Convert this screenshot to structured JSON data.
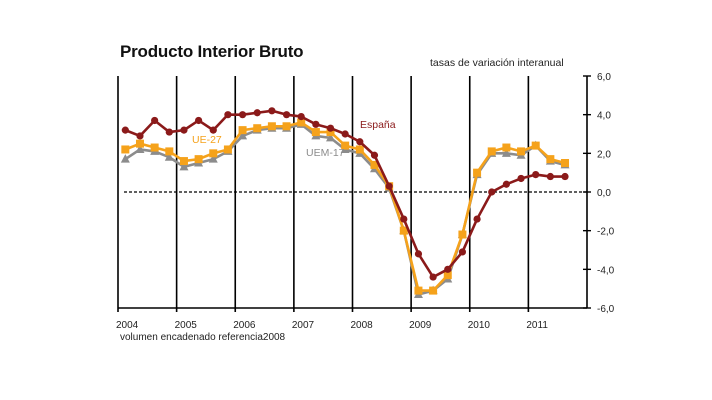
{
  "title": "Producto Interior Bruto",
  "subtitle": "tasas de variación interanual",
  "footnote": "volumen encadenado referencia2008",
  "chart_data": {
    "type": "line",
    "title": "Producto Interior Bruto",
    "subtitle": "tasas de variación interanual",
    "xlabel": "",
    "ylabel": "",
    "note": "volumen encadenado referencia2008",
    "x_tick_labels": [
      "2004",
      "2005",
      "2006",
      "2007",
      "2008",
      "2009",
      "2010",
      "2011"
    ],
    "y_tick_labels": [
      "6,0",
      "4,0",
      "2,0",
      "0,0",
      "-2,0",
      "-4,0",
      "-6,0"
    ],
    "ylim": [
      -6,
      6
    ],
    "grid": "vertical year lines, dashed zero line",
    "frequency": "quarterly",
    "x": [
      "2004Q1",
      "2004Q2",
      "2004Q3",
      "2004Q4",
      "2005Q1",
      "2005Q2",
      "2005Q3",
      "2005Q4",
      "2006Q1",
      "2006Q2",
      "2006Q3",
      "2006Q4",
      "2007Q1",
      "2007Q2",
      "2007Q3",
      "2007Q4",
      "2008Q1",
      "2008Q2",
      "2008Q3",
      "2008Q4",
      "2009Q1",
      "2009Q2",
      "2009Q3",
      "2009Q4",
      "2010Q1",
      "2010Q2",
      "2010Q3",
      "2010Q4",
      "2011Q1",
      "2011Q2",
      "2011Q3"
    ],
    "series": [
      {
        "name": "España",
        "color": "#8b1a1a",
        "marker": "circle",
        "values": [
          3.2,
          2.9,
          3.7,
          3.1,
          3.2,
          3.7,
          3.2,
          4.0,
          4.0,
          4.1,
          4.2,
          4.0,
          3.9,
          3.5,
          3.3,
          3.0,
          2.6,
          1.9,
          0.3,
          -1.4,
          -3.2,
          -4.4,
          -4.0,
          -3.1,
          -1.4,
          0.0,
          0.4,
          0.7,
          0.9,
          0.8,
          0.8
        ]
      },
      {
        "name": "UE-27",
        "color": "#f5a21b",
        "marker": "square",
        "values": [
          2.2,
          2.5,
          2.3,
          2.1,
          1.6,
          1.7,
          2.0,
          2.2,
          3.2,
          3.3,
          3.4,
          3.4,
          3.6,
          3.1,
          3.1,
          2.4,
          2.2,
          1.4,
          0.3,
          -2.0,
          -5.1,
          -5.1,
          -4.3,
          -2.2,
          1.0,
          2.1,
          2.3,
          2.1,
          2.4,
          1.7,
          1.5
        ]
      },
      {
        "name": "UEM-17",
        "color": "#8c8c8c",
        "marker": "triangle",
        "values": [
          1.7,
          2.2,
          2.1,
          1.8,
          1.3,
          1.5,
          1.7,
          2.1,
          2.9,
          3.2,
          3.3,
          3.3,
          3.5,
          2.9,
          2.8,
          2.2,
          2.0,
          1.2,
          0.2,
          -2.0,
          -5.3,
          -5.1,
          -4.5,
          -2.2,
          0.9,
          2.0,
          2.0,
          1.9,
          2.4,
          1.6,
          1.4
        ]
      }
    ],
    "annotations": [
      {
        "text": "España",
        "color": "#8b1a1a"
      },
      {
        "text": "UE-27",
        "color": "#f5a21b"
      },
      {
        "text": "UEM-17",
        "color": "#8c8c8c"
      }
    ]
  }
}
